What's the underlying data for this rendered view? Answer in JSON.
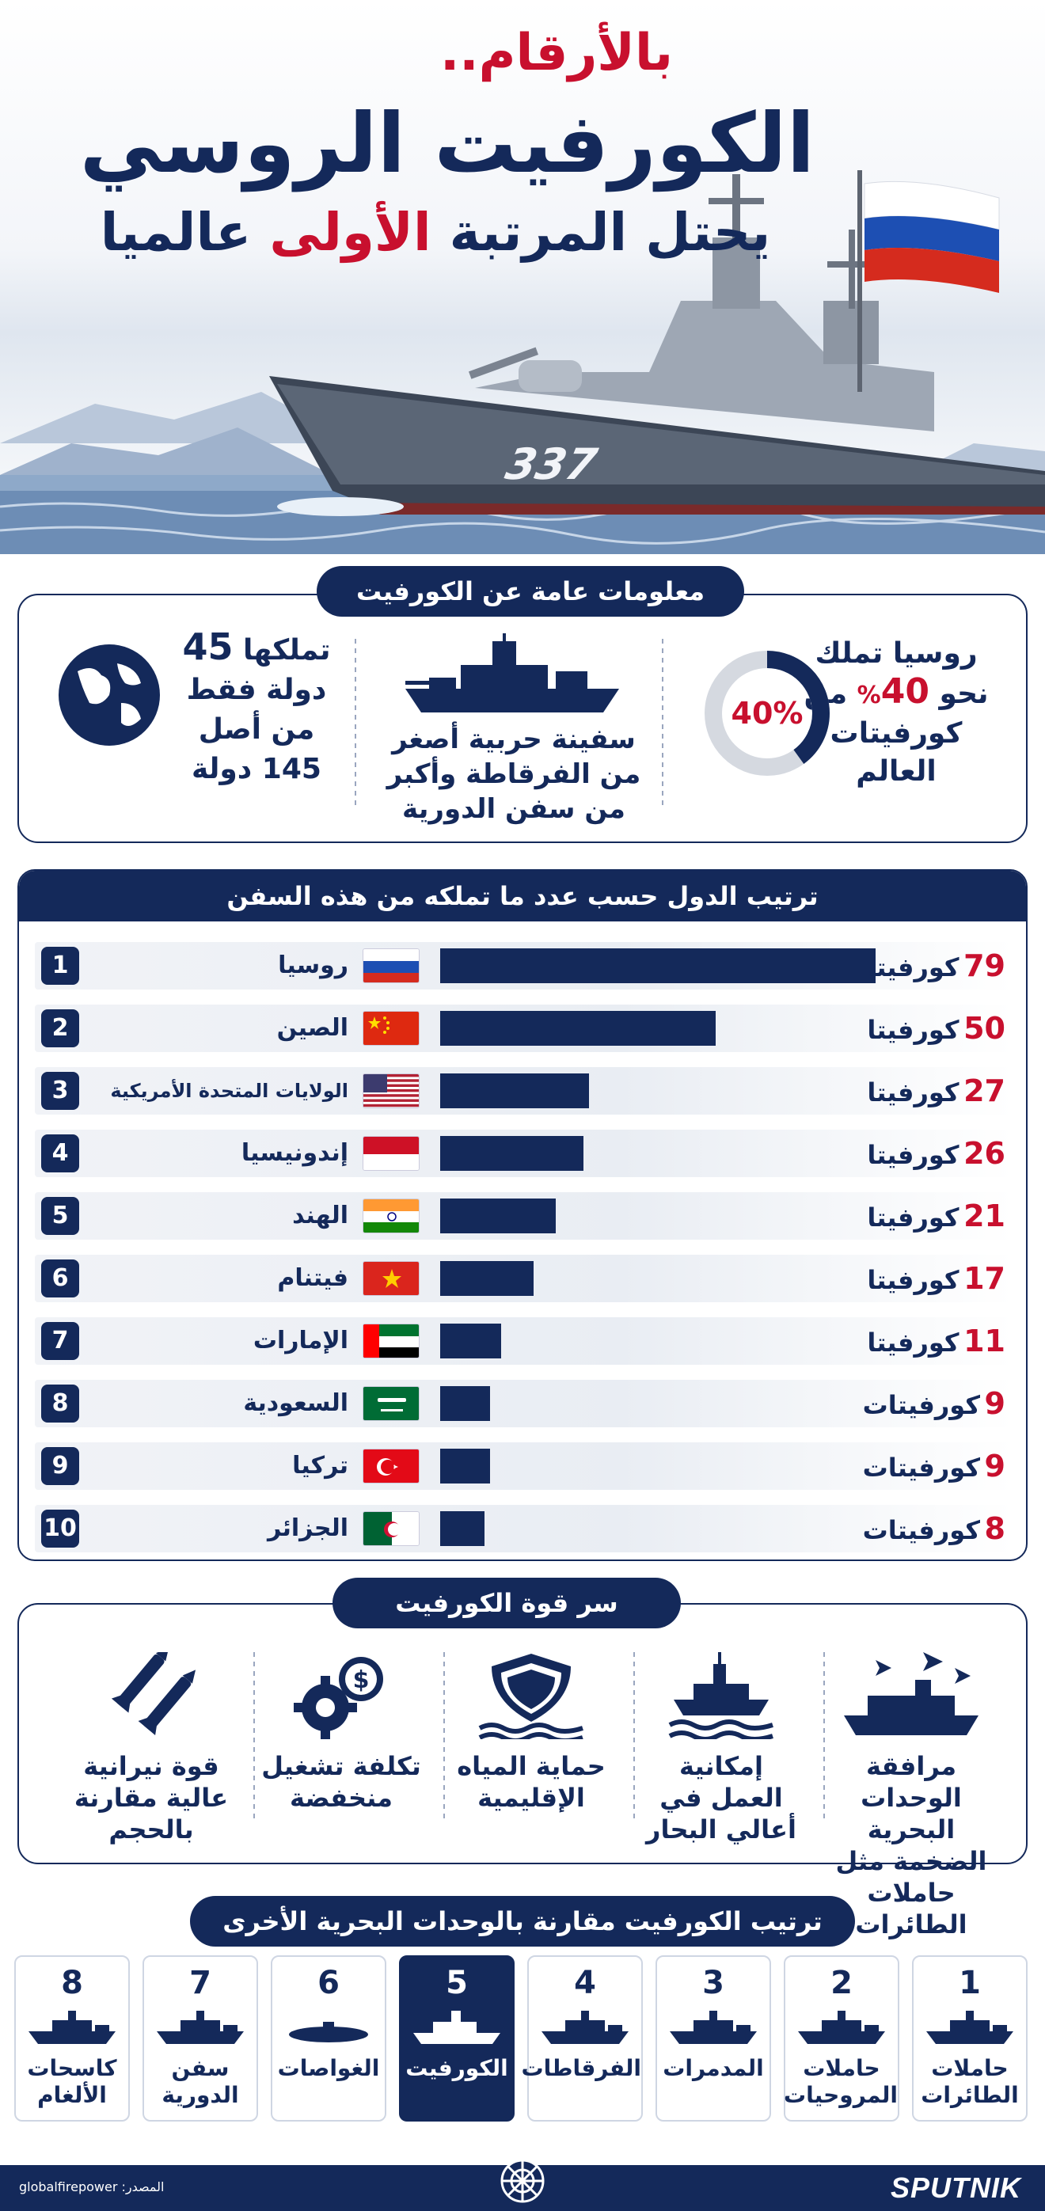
{
  "header": {
    "line1": "بالأرقام..",
    "line2": "الكورفيت الروسي",
    "line3_pre": "يحتل المرتبة ",
    "line3_highlight": "الأولى",
    "line3_post": " عالميا",
    "ship_number": "337"
  },
  "info": {
    "title": "معلومات عامة عن الكورفيت",
    "russia_a": "روسيا تملك",
    "russia_b_pre": "نحو ",
    "russia_b_num": "40",
    "russia_b_pct": "%",
    "russia_b_post": " من",
    "russia_c": "كورفيتات",
    "russia_d": "العالم",
    "donut_label": "40%",
    "donut_value": 40,
    "ship_1": "سفينة حربية أصغر",
    "ship_2": "من الفرقاطة وأكبر",
    "ship_3": "من سفن الدورية",
    "owners_1_pre": "تملكها ",
    "owners_1_num": "45",
    "owners_2": "دولة فقط",
    "owners_3": "من أصل",
    "owners_4": "145 دولة"
  },
  "ranking": {
    "title": "ترتيب الدول حسب عدد ما تملكه من  هذه السفن"
  },
  "chart_data": {
    "type": "bar",
    "title": "ترتيب الدول حسب عدد ما تملكه من  هذه السفن",
    "ranks": [
      "1",
      "2",
      "3",
      "4",
      "5",
      "6",
      "7",
      "8",
      "9",
      "10"
    ],
    "categories": [
      "روسيا",
      "الصين",
      "الولايات المتحدة الأمريكية",
      "إندونيسيا",
      "الهند",
      "فيتنام",
      "الإمارات",
      "السعودية",
      "تركيا",
      "الجزائر"
    ],
    "values": [
      79,
      50,
      27,
      26,
      21,
      17,
      11,
      9,
      9,
      8
    ],
    "value_labels": [
      "79",
      "50",
      "27",
      "26",
      "21",
      "17",
      "11",
      "9",
      "9",
      "8"
    ],
    "unit_labels": [
      "كورفيتا",
      "كورفيتا",
      "كورفيتا",
      "كورفيتا",
      "كورفيتا",
      "كورفيتا",
      "كورفيتا",
      "كورفيتات",
      "كورفيتات",
      "كورفيتات"
    ],
    "flags": [
      "russia",
      "china",
      "usa",
      "indonesia",
      "india",
      "vietnam",
      "uae",
      "saudi",
      "turkey",
      "algeria"
    ]
  },
  "strength": {
    "title": "سر قوة الكورفيت",
    "items": [
      {
        "l1": "مرافقة الوحدات",
        "l2": "البحرية الضخمة مثل",
        "l3": "حاملات الطائرات",
        "icon": "ship-aircraft-icon"
      },
      {
        "l1": "إمكانية",
        "l2": "العمل في",
        "l3": "أعالي البحار",
        "icon": "ship-waves-icon"
      },
      {
        "l1": "حماية المياه",
        "l2": "الإقليمية",
        "l3": "",
        "icon": "shield-waves-icon"
      },
      {
        "l1": "تكلفة تشغيل",
        "l2": "منخفضة",
        "l3": "",
        "icon": "gear-dollar-icon"
      },
      {
        "l1": "قوة نيرانية",
        "l2": "عالية مقارنة",
        "l3": "بالحجم",
        "icon": "missiles-icon"
      }
    ]
  },
  "comparison": {
    "title": "ترتيب الكورفيت مقارنة بالوحدات البحرية الأخرى",
    "items": [
      {
        "num": "1",
        "l1": "حاملات",
        "l2": "الطائرات"
      },
      {
        "num": "2",
        "l1": "حاملات",
        "l2": "المروحيات"
      },
      {
        "num": "3",
        "l1": "المدمرات",
        "l2": ""
      },
      {
        "num": "4",
        "l1": "الفرقاطات",
        "l2": ""
      },
      {
        "num": "5",
        "l1": "الكورفيت",
        "l2": ""
      },
      {
        "num": "6",
        "l1": "الغواصات",
        "l2": ""
      },
      {
        "num": "7",
        "l1": "سفن",
        "l2": "الدورية"
      },
      {
        "num": "8",
        "l1": "كاسحات",
        "l2": "الألغام"
      }
    ]
  },
  "footer": {
    "source": "المصدر: globalfirepower",
    "brand": "SPUTNIK"
  },
  "colors": {
    "navy": "#14295a",
    "red": "#c8102e"
  }
}
